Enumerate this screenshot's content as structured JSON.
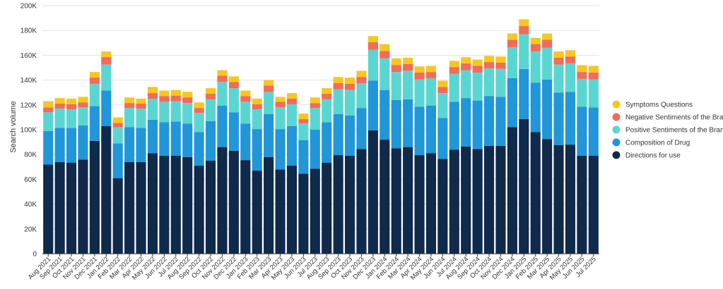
{
  "chart_data": {
    "type": "bar",
    "stacked": true,
    "ylabel": "Search volume",
    "xlabel": "",
    "ylim": [
      0,
      200000
    ],
    "yticks": [
      {
        "value": 0,
        "label": "0"
      },
      {
        "value": 20000,
        "label": "20K"
      },
      {
        "value": 40000,
        "label": "40K"
      },
      {
        "value": 60000,
        "label": "60K"
      },
      {
        "value": 80000,
        "label": "80K"
      },
      {
        "value": 100000,
        "label": "100K"
      },
      {
        "value": 120000,
        "label": "120K"
      },
      {
        "value": 140000,
        "label": "140K"
      },
      {
        "value": 160000,
        "label": "160K"
      },
      {
        "value": 180000,
        "label": "180K"
      },
      {
        "value": 200000,
        "label": "200K"
      }
    ],
    "grid": true,
    "legend_position": "right",
    "categories": [
      "Aug 2021",
      "Sep 2021",
      "Oct 2021",
      "Nov 2021",
      "Dec 2021",
      "Jan 2022",
      "Feb 2022",
      "Mar 2022",
      "Apr 2022",
      "May 2022",
      "Jun 2022",
      "Jul 2022",
      "Aug 2022",
      "Sep 2022",
      "Oct 2022",
      "Nov 2022",
      "Dec 2022",
      "Jan 2023",
      "Feb 2023",
      "Mar 2023",
      "Apr 2023",
      "May 2023",
      "Jun 2023",
      "Jul 2023",
      "Aug 2023",
      "Sep 2023",
      "Oct 2023",
      "Nov 2023",
      "Dec 2023",
      "Jan 2024",
      "Feb 2024",
      "Mar 2024",
      "Apr 2024",
      "May 2024",
      "Jun 2024",
      "Jul 2024",
      "Aug 2024",
      "Sep 2024",
      "Oct 2024",
      "Nov 2024",
      "Dec 2024",
      "Jan 2025",
      "Feb 2025",
      "Mar 2025",
      "Apr 2025",
      "May 2025",
      "Jun 2025",
      "Jul 2025"
    ],
    "series": [
      {
        "name": "Directions for use",
        "color": "#0f2a4a",
        "values": [
          72000,
          74000,
          73500,
          76000,
          91000,
          103000,
          61000,
          74000,
          74000,
          81000,
          79000,
          79000,
          78000,
          71000,
          75000,
          86000,
          83000,
          75500,
          67000,
          78000,
          68000,
          71000,
          64500,
          68500,
          73500,
          79500,
          79000,
          84500,
          99500,
          92000,
          85000,
          86000,
          79500,
          81000,
          76500,
          84000,
          86500,
          84500,
          87000,
          87000,
          102000,
          108500,
          98000,
          92500,
          87500,
          88000,
          79000,
          79000
        ]
      },
      {
        "name": "Composition of Drug",
        "color": "#2196d9",
        "values": [
          27000,
          27500,
          28000,
          27500,
          28000,
          28500,
          28000,
          28000,
          27500,
          27000,
          27000,
          27500,
          27000,
          27000,
          32000,
          33500,
          31000,
          29500,
          33500,
          34500,
          32500,
          32000,
          27000,
          31500,
          32500,
          33000,
          32500,
          33000,
          40000,
          40000,
          39000,
          38500,
          39000,
          38500,
          33000,
          38500,
          39000,
          39000,
          40000,
          39500,
          39500,
          40500,
          40000,
          48000,
          42500,
          42500,
          39500,
          39000
        ]
      },
      {
        "name": "Positive Sentiments of the Brand",
        "color": "#5ad6d2",
        "values": [
          15000,
          15500,
          15000,
          14500,
          18000,
          21000,
          13000,
          15500,
          15500,
          17000,
          16500,
          16500,
          16500,
          15500,
          17500,
          19000,
          19500,
          17500,
          16000,
          18000,
          17500,
          17500,
          13500,
          17500,
          18500,
          20000,
          20500,
          20000,
          25000,
          25500,
          22500,
          23000,
          22000,
          22000,
          20000,
          22500,
          22500,
          22500,
          22500,
          22500,
          25000,
          28000,
          25000,
          25500,
          22500,
          23000,
          22500,
          22500
        ]
      },
      {
        "name": "Negative Sentiments of the Brand",
        "color": "#f26b5b",
        "values": [
          4000,
          4000,
          4000,
          4000,
          5000,
          6000,
          3500,
          4000,
          4000,
          4500,
          4500,
          4500,
          4500,
          4000,
          4500,
          5000,
          5000,
          4500,
          4000,
          5000,
          4500,
          4500,
          3500,
          4000,
          4500,
          5000,
          5000,
          5000,
          6000,
          6000,
          5500,
          5500,
          5500,
          5000,
          5000,
          5500,
          5500,
          5500,
          5000,
          5000,
          6000,
          6500,
          6000,
          6500,
          5500,
          5500,
          5500,
          5500
        ]
      },
      {
        "name": "Symptoms Questions",
        "color": "#f9c61f",
        "values": [
          5000,
          4500,
          4500,
          4500,
          4500,
          4500,
          4500,
          4500,
          4000,
          5000,
          4500,
          4500,
          4500,
          4500,
          4500,
          4500,
          4500,
          4500,
          4500,
          4500,
          4000,
          4500,
          4500,
          4500,
          4500,
          5000,
          5000,
          5000,
          5000,
          5500,
          5500,
          5000,
          5000,
          5000,
          5000,
          5000,
          5000,
          5000,
          5000,
          5000,
          5000,
          5500,
          5000,
          5000,
          5000,
          5000,
          5500,
          5500
        ]
      }
    ]
  },
  "legend": {
    "items": [
      {
        "label": "Symptoms Questions",
        "color": "#f9c61f"
      },
      {
        "label": "Negative Sentiments of the Bran",
        "color": "#f26b5b"
      },
      {
        "label": "Positive Sentiments of the Brand",
        "color": "#5ad6d2"
      },
      {
        "label": "Composition of Drug",
        "color": "#2196d9"
      },
      {
        "label": "Directions for use",
        "color": "#0f2a4a"
      }
    ]
  }
}
